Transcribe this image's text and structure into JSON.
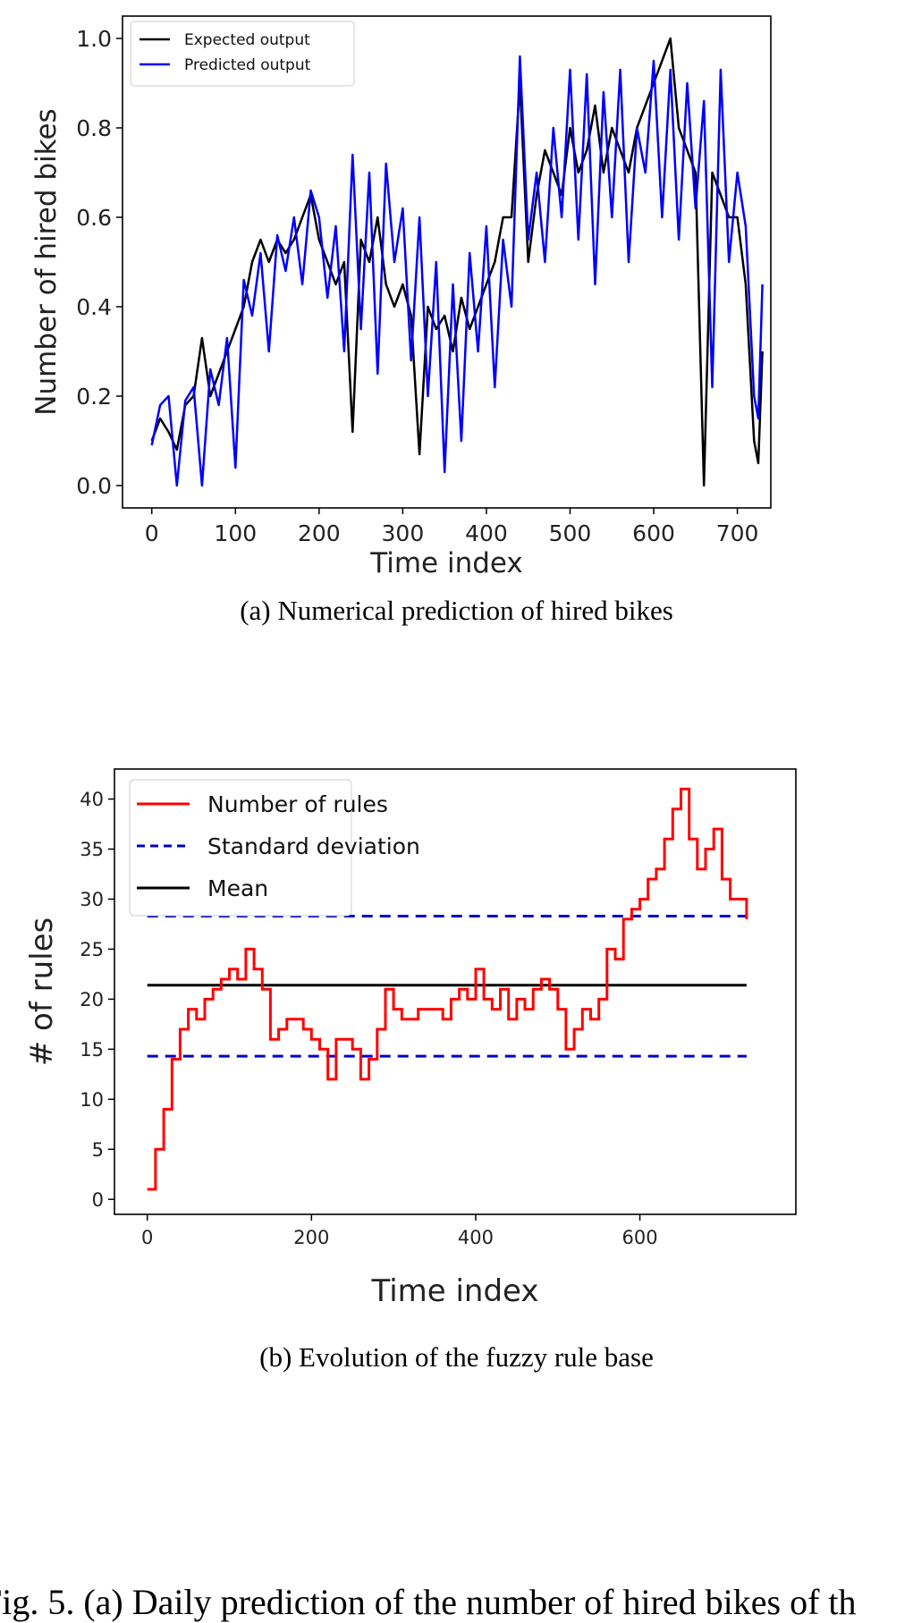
{
  "chart_data": [
    {
      "type": "line",
      "title": "",
      "xlabel": "Time index",
      "ylabel": "Number of hired bikes",
      "xlim": [
        -35,
        740
      ],
      "ylim": [
        -0.05,
        1.05
      ],
      "xticks": [
        0,
        100,
        200,
        300,
        400,
        500,
        600,
        700
      ],
      "xtick_labels": [
        "0",
        "100",
        "200",
        "300",
        "400",
        "500",
        "600",
        "700"
      ],
      "yticks": [
        0.0,
        0.2,
        0.4,
        0.6,
        0.8,
        1.0
      ],
      "ytick_labels": [
        "0.0",
        "0.2",
        "0.4",
        "0.6",
        "0.8",
        "1.0"
      ],
      "legend_position": "top-left",
      "grid": false,
      "caption": "(a) Numerical prediction of hired bikes",
      "x": [
        0,
        10,
        20,
        30,
        40,
        50,
        60,
        70,
        80,
        90,
        100,
        110,
        120,
        130,
        140,
        150,
        160,
        170,
        180,
        190,
        200,
        210,
        220,
        230,
        240,
        250,
        260,
        270,
        280,
        290,
        300,
        310,
        320,
        330,
        340,
        350,
        360,
        370,
        380,
        390,
        400,
        410,
        420,
        430,
        440,
        450,
        460,
        470,
        480,
        490,
        500,
        510,
        520,
        530,
        540,
        550,
        560,
        570,
        580,
        590,
        600,
        610,
        620,
        630,
        640,
        650,
        660,
        670,
        680,
        690,
        700,
        710,
        720,
        725,
        730
      ],
      "series": [
        {
          "name": "Expected output",
          "color": "#000000",
          "values": [
            0.1,
            0.15,
            0.12,
            0.08,
            0.18,
            0.2,
            0.33,
            0.2,
            0.25,
            0.3,
            0.35,
            0.4,
            0.5,
            0.55,
            0.5,
            0.55,
            0.52,
            0.55,
            0.6,
            0.65,
            0.55,
            0.5,
            0.45,
            0.5,
            0.12,
            0.55,
            0.5,
            0.6,
            0.45,
            0.4,
            0.45,
            0.38,
            0.07,
            0.4,
            0.35,
            0.38,
            0.3,
            0.42,
            0.35,
            0.4,
            0.45,
            0.5,
            0.6,
            0.6,
            0.9,
            0.5,
            0.65,
            0.75,
            0.7,
            0.65,
            0.8,
            0.7,
            0.75,
            0.85,
            0.7,
            0.8,
            0.75,
            0.7,
            0.8,
            0.85,
            0.9,
            0.95,
            1.0,
            0.8,
            0.75,
            0.7,
            0.0,
            0.7,
            0.65,
            0.6,
            0.6,
            0.45,
            0.1,
            0.05,
            0.3
          ]
        },
        {
          "name": "Predicted output",
          "color": "#0000ff",
          "values": [
            0.09,
            0.18,
            0.2,
            0.0,
            0.19,
            0.22,
            0.0,
            0.26,
            0.18,
            0.33,
            0.04,
            0.46,
            0.38,
            0.52,
            0.3,
            0.56,
            0.48,
            0.6,
            0.45,
            0.66,
            0.6,
            0.42,
            0.58,
            0.3,
            0.74,
            0.35,
            0.7,
            0.25,
            0.72,
            0.5,
            0.62,
            0.28,
            0.6,
            0.2,
            0.5,
            0.03,
            0.45,
            0.1,
            0.52,
            0.3,
            0.58,
            0.22,
            0.55,
            0.4,
            0.96,
            0.55,
            0.7,
            0.5,
            0.8,
            0.6,
            0.93,
            0.55,
            0.92,
            0.45,
            0.88,
            0.6,
            0.93,
            0.5,
            0.8,
            0.7,
            0.95,
            0.6,
            0.93,
            0.55,
            0.9,
            0.62,
            0.86,
            0.22,
            0.93,
            0.5,
            0.7,
            0.58,
            0.2,
            0.15,
            0.45
          ]
        }
      ]
    },
    {
      "type": "line",
      "title": "",
      "xlabel": "Time index",
      "ylabel": "# of rules",
      "xlim": [
        -40,
        790
      ],
      "ylim": [
        -1.5,
        43
      ],
      "xticks": [
        0,
        200,
        400,
        600
      ],
      "xtick_labels": [
        "0",
        "200",
        "400",
        "600"
      ],
      "yticks": [
        0,
        5,
        10,
        15,
        20,
        25,
        30,
        35,
        40
      ],
      "ytick_labels": [
        "0",
        "5",
        "10",
        "15",
        "20",
        "25",
        "30",
        "35",
        "40"
      ],
      "legend_position": "top-left",
      "grid": false,
      "caption": "(b) Evolution of the fuzzy rule base",
      "x": [
        0,
        10,
        20,
        30,
        40,
        50,
        60,
        70,
        80,
        90,
        100,
        110,
        120,
        130,
        140,
        150,
        160,
        170,
        180,
        190,
        200,
        210,
        220,
        230,
        240,
        250,
        260,
        270,
        280,
        290,
        300,
        310,
        320,
        330,
        340,
        350,
        360,
        370,
        380,
        390,
        400,
        410,
        420,
        430,
        440,
        450,
        460,
        470,
        480,
        490,
        500,
        510,
        520,
        530,
        540,
        550,
        560,
        570,
        580,
        590,
        600,
        610,
        620,
        630,
        640,
        650,
        660,
        670,
        680,
        690,
        700,
        710,
        720,
        730
      ],
      "series": [
        {
          "name": "Number of rules",
          "color": "#ff0000",
          "style": "solid",
          "values": [
            1,
            5,
            9,
            14,
            17,
            19,
            18,
            20,
            21,
            22,
            23,
            22,
            25,
            23,
            21,
            16,
            17,
            18,
            18,
            17,
            16,
            15,
            12,
            16,
            16,
            15,
            12,
            14,
            17,
            21,
            19,
            18,
            18,
            19,
            19,
            19,
            18,
            20,
            21,
            20,
            23,
            20,
            19,
            21,
            18,
            20,
            19,
            21,
            22,
            21,
            19,
            15,
            17,
            19,
            18,
            20,
            25,
            24,
            28,
            29,
            30,
            32,
            33,
            36,
            39,
            41,
            36,
            33,
            35,
            37,
            32,
            30,
            30,
            28
          ]
        },
        {
          "name": "Standard deviation",
          "color": "#0000cc",
          "style": "dashed",
          "values_upper": 28.3,
          "values_lower": 14.3
        },
        {
          "name": "Mean",
          "color": "#000000",
          "style": "solid",
          "value": 21.4
        }
      ]
    }
  ],
  "figure_caption_partial": "Fig. 5. (a) Daily prediction of the number of hired bikes of th"
}
